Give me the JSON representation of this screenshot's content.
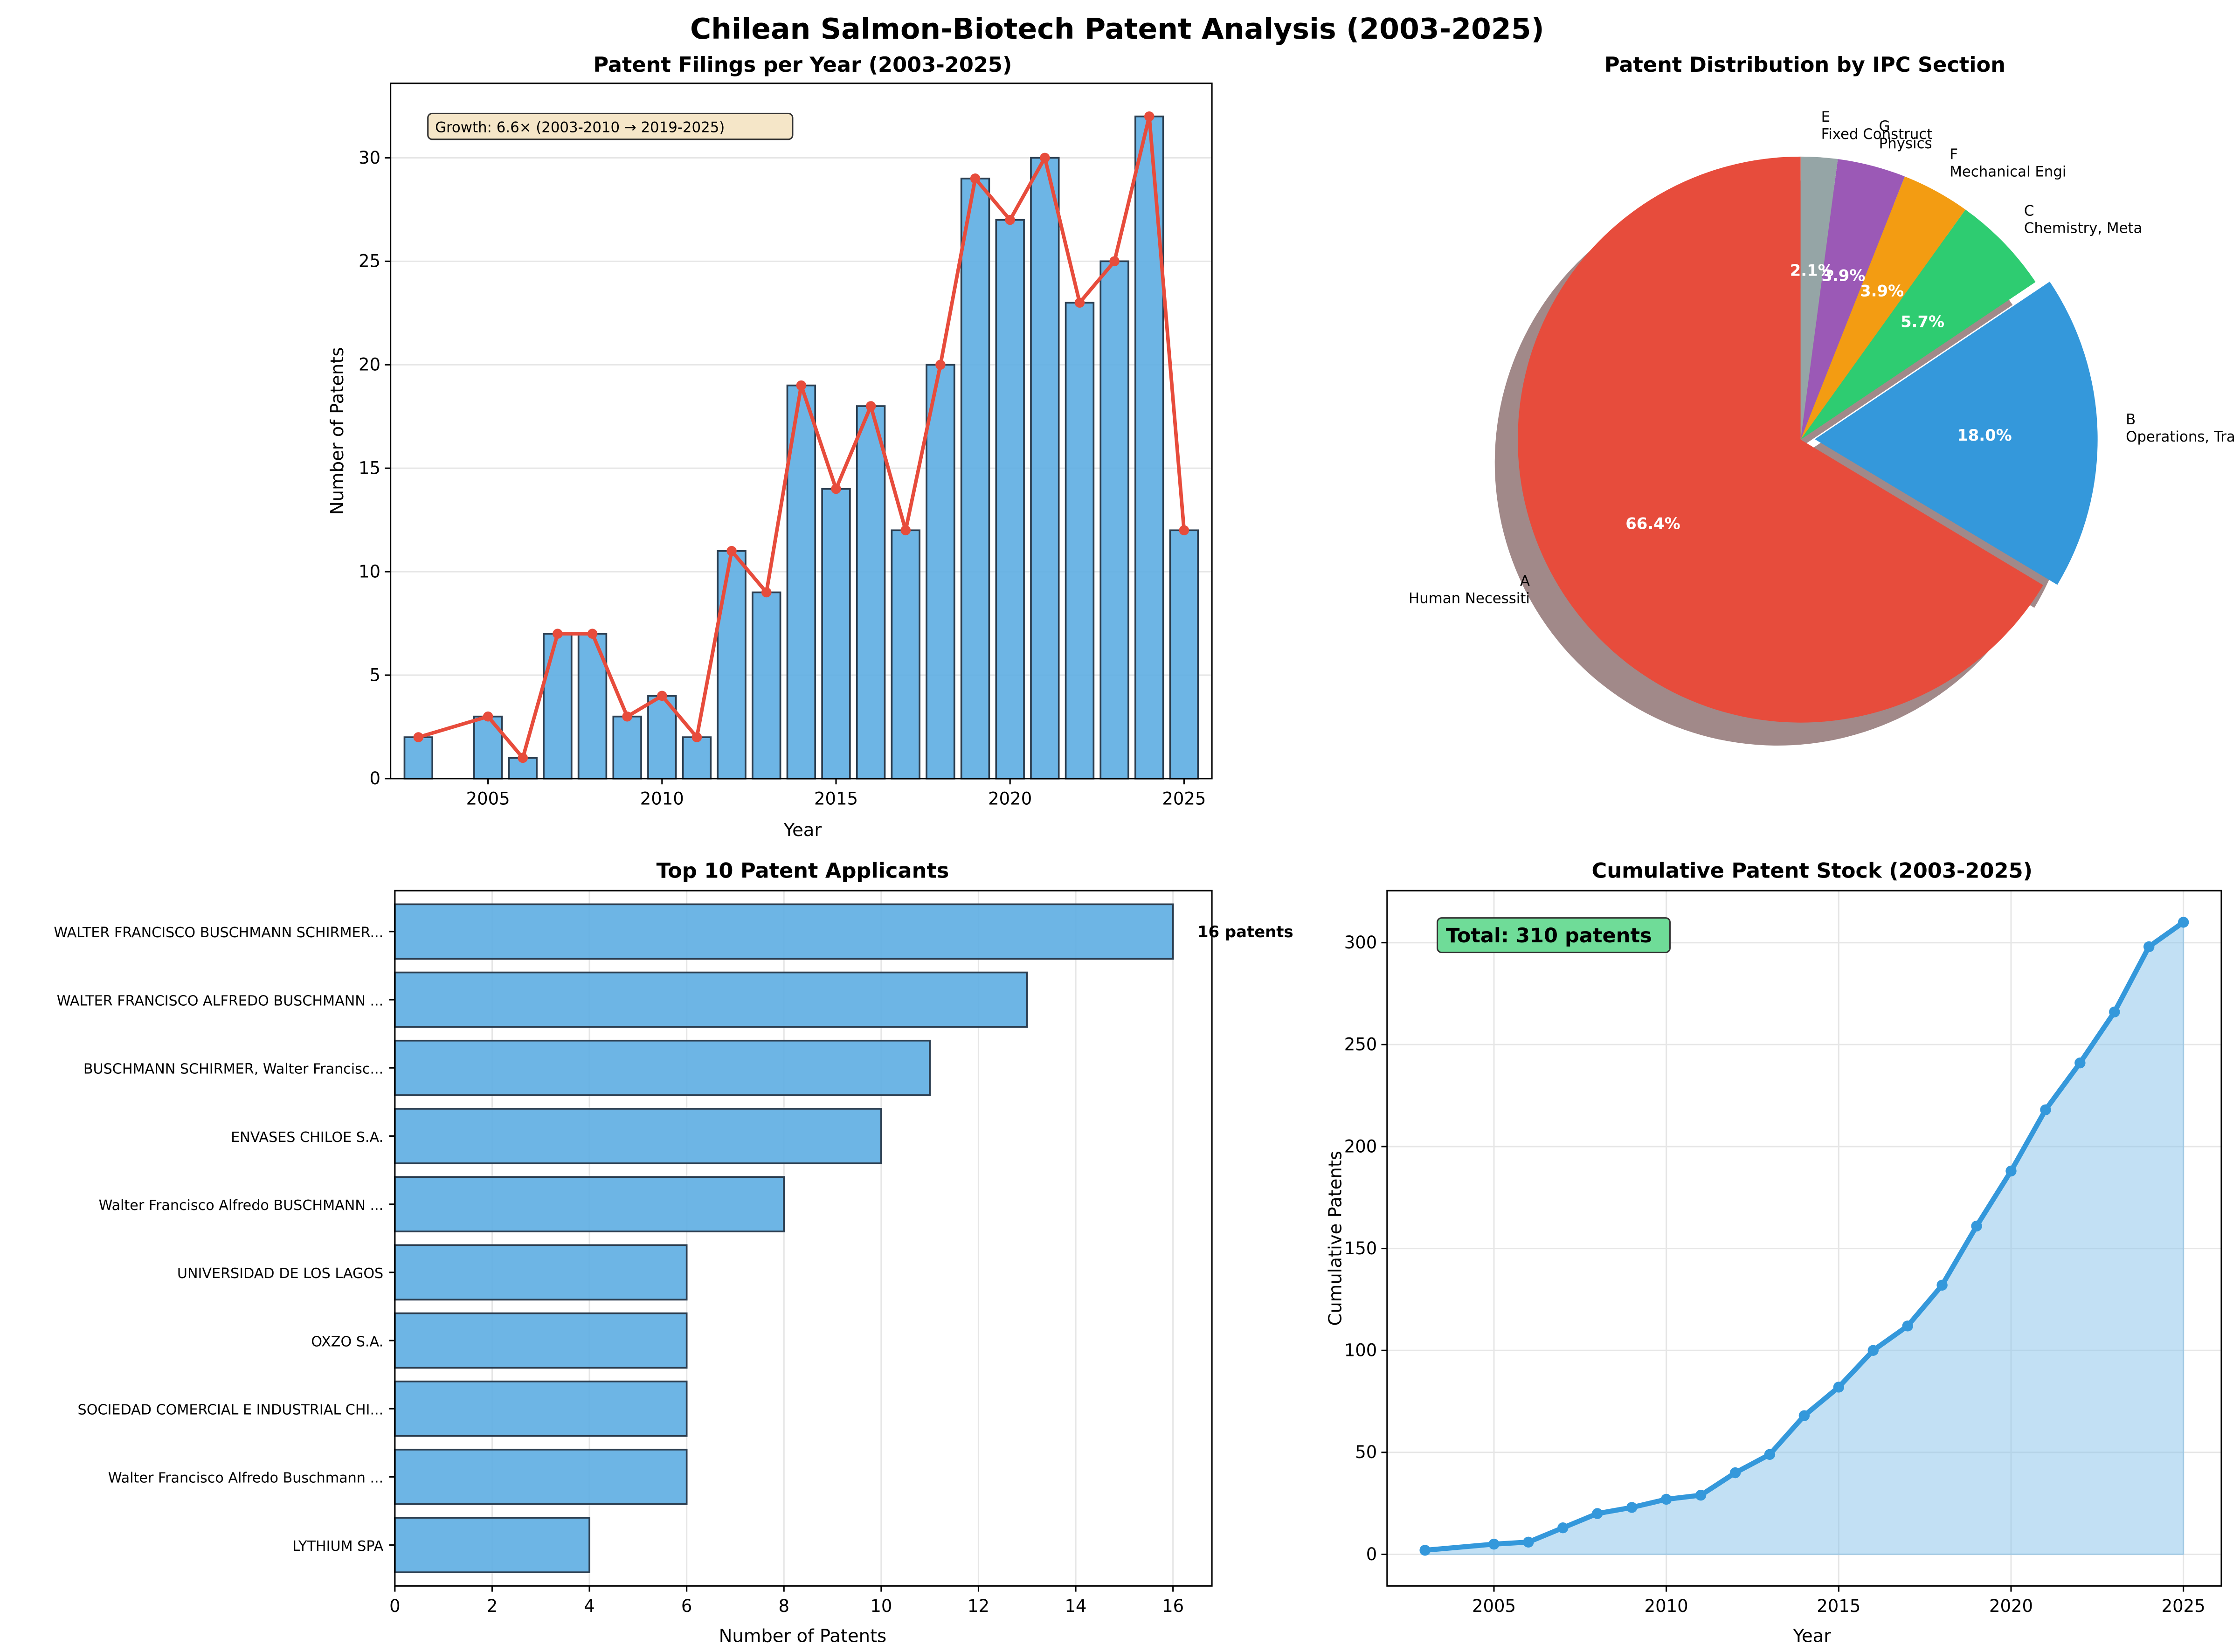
{
  "suptitle": "Chilean Salmon-Biotech Patent Analysis (2003-2025)",
  "chart_data": [
    {
      "id": "filings",
      "type": "bar",
      "title": "Patent Filings per Year (2003-2025)",
      "xlabel": "Year",
      "ylabel": "Number of Patents",
      "x": [
        2003,
        2005,
        2006,
        2007,
        2008,
        2009,
        2010,
        2011,
        2012,
        2013,
        2014,
        2015,
        2016,
        2017,
        2018,
        2019,
        2020,
        2021,
        2022,
        2023,
        2024,
        2025
      ],
      "values": [
        2,
        3,
        1,
        7,
        7,
        3,
        4,
        2,
        11,
        9,
        19,
        14,
        18,
        12,
        20,
        29,
        27,
        30,
        23,
        25,
        32,
        12
      ],
      "overlay_line": true,
      "xlim": [
        2002.2,
        2025.8
      ],
      "ylim": [
        0,
        33.6
      ],
      "xticks": [
        2005,
        2010,
        2015,
        2020,
        2025
      ],
      "yticks": [
        0,
        5,
        10,
        15,
        20,
        25,
        30
      ],
      "grid": "y",
      "annotation": "Growth: 6.6× (2003-2010 → 2019-2025)",
      "colors": {
        "bar": "#5dade2",
        "edge": "#2c3e50",
        "line": "#e74c3c"
      }
    },
    {
      "id": "ipc",
      "type": "pie",
      "title": "Patent Distribution by IPC Section",
      "slices": [
        {
          "code": "A",
          "label": "Human Necessiti",
          "pct": 66.4,
          "pct_label": "66.4%",
          "color": "#e74c3c"
        },
        {
          "code": "B",
          "label": "Operations, Tra",
          "pct": 18.0,
          "pct_label": "18.0%",
          "color": "#3498db",
          "exploded": true
        },
        {
          "code": "C",
          "label": "Chemistry, Meta",
          "pct": 5.7,
          "pct_label": "5.7%",
          "color": "#2ecc71"
        },
        {
          "code": "F",
          "label": "Mechanical Engi",
          "pct": 3.9,
          "pct_label": "3.9%",
          "color": "#f39c12"
        },
        {
          "code": "G",
          "label": "Physics",
          "pct": 3.9,
          "pct_label": "3.9%",
          "color": "#9b59b6"
        },
        {
          "code": "E",
          "label": "Fixed Construct",
          "pct": 2.1,
          "pct_label": "2.1%",
          "color": "#95a5a6"
        }
      ],
      "start_angle_deg": 90,
      "shadow": true
    },
    {
      "id": "applicants",
      "type": "bar",
      "orientation": "horizontal",
      "title": "Top 10 Patent Applicants",
      "xlabel": "Number of Patents",
      "categories": [
        "WALTER FRANCISCO BUSCHMANN SCHIRMER...",
        "WALTER FRANCISCO ALFREDO BUSCHMANN ...",
        "BUSCHMANN SCHIRMER, Walter Francisc...",
        "ENVASES CHILOE S.A.",
        "Walter Francisco Alfredo BUSCHMANN ...",
        "UNIVERSIDAD DE LOS LAGOS",
        "OXZO S.A.",
        "SOCIEDAD COMERCIAL E INDUSTRIAL CHI...",
        "Walter Francisco Alfredo Buschmann ...",
        "LYTHIUM SPA"
      ],
      "values": [
        16,
        13,
        11,
        10,
        8,
        6,
        6,
        6,
        6,
        4
      ],
      "xlim": [
        0,
        16.8
      ],
      "xticks": [
        0,
        2,
        4,
        6,
        8,
        10,
        12,
        14,
        16
      ],
      "grid": "x",
      "top_label": "16 patents",
      "colors": {
        "bar": "#5dade2",
        "edge": "#2c3e50"
      }
    },
    {
      "id": "cumulative",
      "type": "area",
      "title": "Cumulative Patent Stock (2003-2025)",
      "xlabel": "Year",
      "ylabel": "Cumulative Patents",
      "x": [
        2003,
        2005,
        2006,
        2007,
        2008,
        2009,
        2010,
        2011,
        2012,
        2013,
        2014,
        2015,
        2016,
        2017,
        2018,
        2019,
        2020,
        2021,
        2022,
        2023,
        2024,
        2025
      ],
      "values": [
        2,
        5,
        6,
        13,
        20,
        23,
        27,
        29,
        40,
        49,
        68,
        82,
        100,
        112,
        132,
        161,
        188,
        218,
        241,
        266,
        298,
        310
      ],
      "xlim": [
        2001.9,
        2026.1
      ],
      "ylim": [
        -15.5,
        325.5
      ],
      "xticks": [
        2005,
        2010,
        2015,
        2020,
        2025
      ],
      "yticks": [
        0,
        50,
        100,
        150,
        200,
        250,
        300
      ],
      "grid": "both",
      "annotation": "Total: 310 patents",
      "colors": {
        "line": "#3498db",
        "fill": "#85c1e9",
        "badge": "#2ecc71"
      }
    }
  ]
}
